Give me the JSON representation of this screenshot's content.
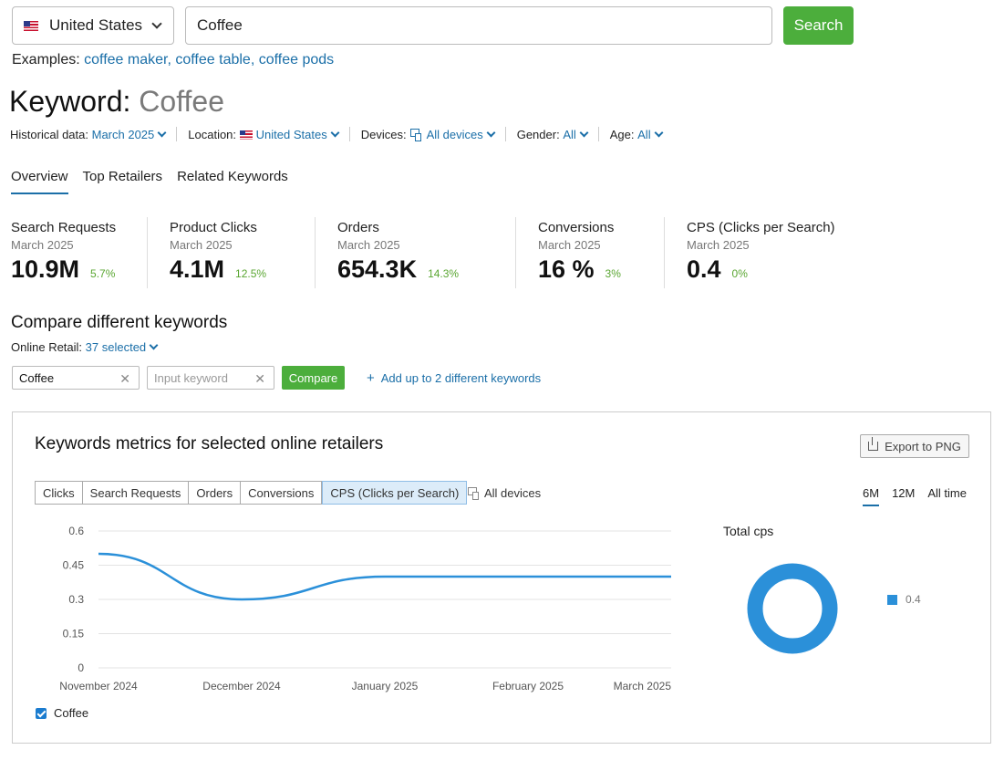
{
  "search": {
    "country": "United States",
    "query": "Coffee",
    "button": "Search",
    "examples_label": "Examples:",
    "examples": [
      "coffee maker,",
      "coffee table,",
      "coffee pods"
    ]
  },
  "title": {
    "prefix": "Keyword:",
    "keyword": "Coffee"
  },
  "filters": {
    "historical_label": "Historical data:",
    "historical_value": "March 2025",
    "location_label": "Location:",
    "location_value": "United States",
    "devices_label": "Devices:",
    "devices_value": "All devices",
    "gender_label": "Gender:",
    "gender_value": "All",
    "age_label": "Age:",
    "age_value": "All"
  },
  "tabs": [
    "Overview",
    "Top Retailers",
    "Related Keywords"
  ],
  "metrics": [
    {
      "name": "Search Requests",
      "date": "March 2025",
      "value": "10.9M",
      "change": "5.7%"
    },
    {
      "name": "Product Clicks",
      "date": "March 2025",
      "value": "4.1M",
      "change": "12.5%"
    },
    {
      "name": "Orders",
      "date": "March 2025",
      "value": "654.3K",
      "change": "14.3%"
    },
    {
      "name": "Conversions",
      "date": "March 2025",
      "value": "16 %",
      "change": "3%"
    },
    {
      "name": "CPS (Clicks per Search)",
      "date": "March 2025",
      "value": "0.4",
      "change": "0%"
    }
  ],
  "compare": {
    "title": "Compare different keywords",
    "retail_label": "Online Retail:",
    "retail_value": "37 selected",
    "keyword1": "Coffee",
    "keyword2_placeholder": "Input keyword",
    "button": "Compare",
    "add": "Add up to 2 different keywords"
  },
  "panel": {
    "title": "Keywords metrics for selected online retailers",
    "export": "Export to PNG",
    "metric_tabs": [
      "Clicks",
      "Search Requests",
      "Orders",
      "Conversions",
      "CPS (Clicks per Search)"
    ],
    "active_metric": 4,
    "devices": "All devices",
    "ranges": [
      "6M",
      "12M",
      "All time"
    ],
    "active_range": 0,
    "legend_series": "Coffee",
    "total_title": "Total cps",
    "total_value": "0.4"
  },
  "colors": {
    "accent": "#1b6fa8",
    "green": "#4cae3c",
    "series": "#2b90d9"
  },
  "chart_data": [
    {
      "type": "line",
      "x": [
        "November 2024",
        "December 2024",
        "January 2025",
        "February 2025",
        "March 2025"
      ],
      "series": [
        {
          "name": "Coffee",
          "values": [
            0.5,
            0.3,
            0.4,
            0.4,
            0.4
          ]
        }
      ],
      "yticks": [
        "0.6",
        "0.45",
        "0.3",
        "0.15",
        "0"
      ],
      "ylim": [
        0,
        0.6
      ],
      "grid": true,
      "legend": "bottom-left"
    },
    {
      "type": "pie",
      "title": "Total cps",
      "labels": [
        "0.4"
      ],
      "values": [
        0.4
      ],
      "donut": true
    }
  ]
}
